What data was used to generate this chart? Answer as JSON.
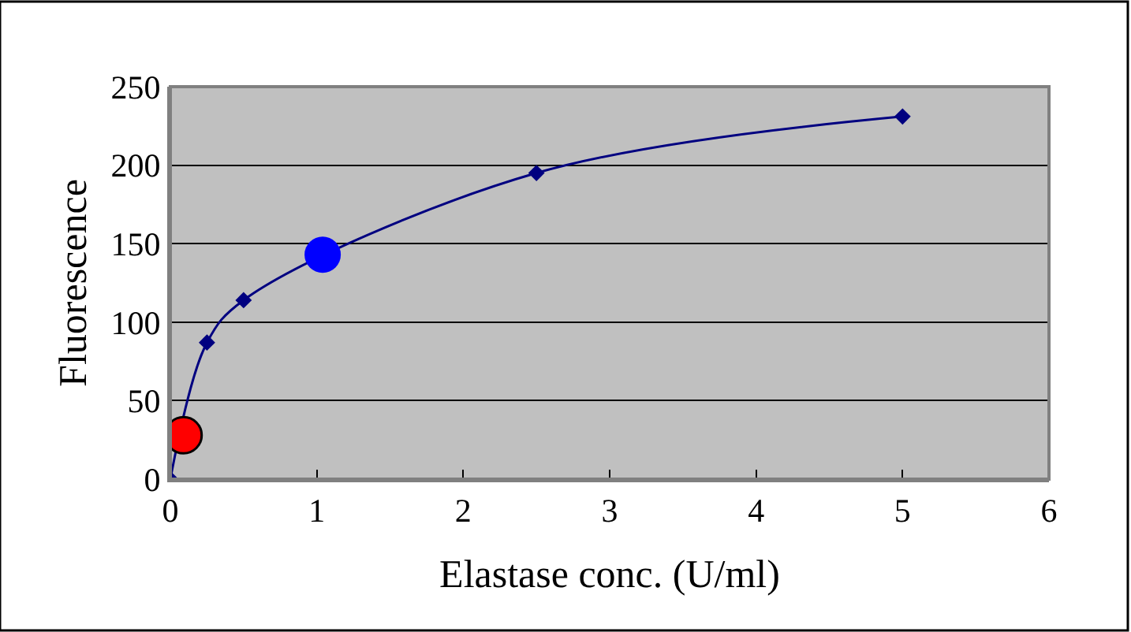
{
  "chart_data": {
    "type": "line",
    "xlabel": "Elastase conc. (U/ml)",
    "ylabel": "Fluorescence",
    "xlim": [
      0,
      6
    ],
    "xticks": [
      0,
      1,
      2,
      3,
      4,
      5,
      6
    ],
    "ylim": [
      0,
      250
    ],
    "yticks": [
      0,
      50,
      100,
      150,
      200,
      250
    ],
    "grid": "y",
    "marker": "diamond",
    "line_style": "solid",
    "series": [
      {
        "color": "#000080",
        "x": [
          0,
          0.25,
          0.5,
          2.5,
          5
        ],
        "values": [
          0,
          87,
          114,
          195,
          231
        ]
      },
      {
        "type": "scatter",
        "marker": "circle",
        "colors": [
          "#ff0000",
          "#0000ff"
        ],
        "x": [
          0.09,
          1.04
        ],
        "values": [
          28,
          143
        ]
      }
    ]
  }
}
